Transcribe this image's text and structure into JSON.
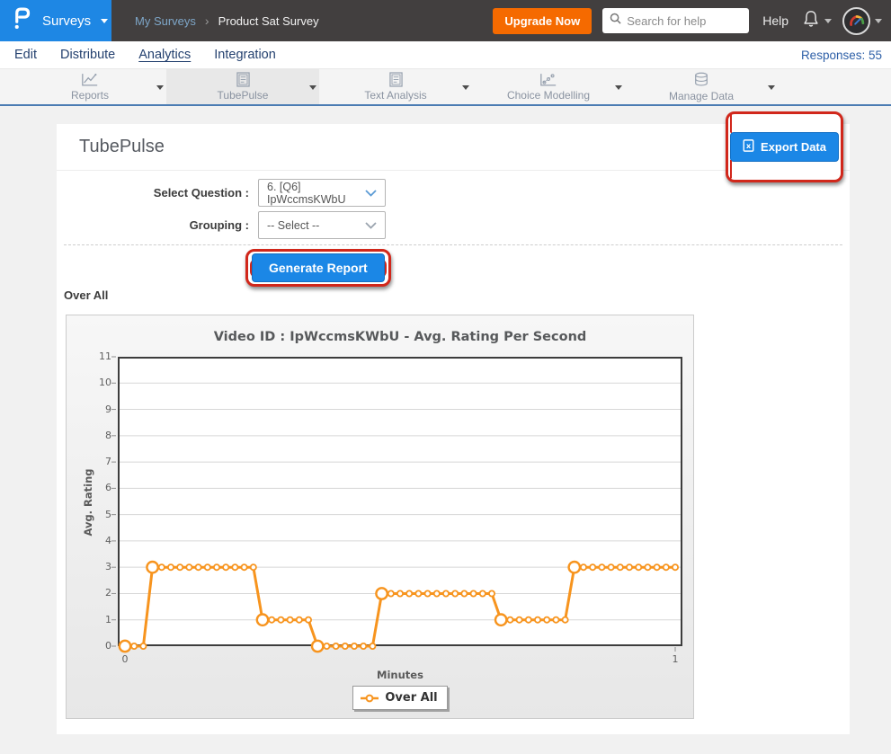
{
  "topbar": {
    "brand_label": "Surveys",
    "breadcrumb": {
      "parent": "My Surveys",
      "separator": "›",
      "current": "Product Sat Survey"
    },
    "upgrade_button": "Upgrade Now",
    "search_placeholder": "Search for help",
    "help_label": "Help"
  },
  "nav": {
    "items": [
      {
        "label": "Edit",
        "active": false
      },
      {
        "label": "Distribute",
        "active": false
      },
      {
        "label": "Analytics",
        "active": true
      },
      {
        "label": "Integration",
        "active": false
      }
    ],
    "responses_label": "Responses: 55"
  },
  "tabs": [
    {
      "label": "Reports",
      "icon": "line-chart-icon",
      "active": false
    },
    {
      "label": "TubePulse",
      "icon": "report-doc-icon",
      "active": true
    },
    {
      "label": "Text Analysis",
      "icon": "report-doc-icon",
      "active": false
    },
    {
      "label": "Choice Modelling",
      "icon": "scatter-chart-icon",
      "active": false
    },
    {
      "label": "Manage Data",
      "icon": "database-icon",
      "active": false
    }
  ],
  "content": {
    "title": "TubePulse",
    "export_button": "Export Data",
    "form": {
      "question_label": "Select Question :",
      "question_value": "6. [Q6] IpWccmsKWbU",
      "grouping_label": "Grouping :",
      "grouping_value": "-- Select --"
    },
    "generate_button": "Generate Report",
    "section_label": "Over All"
  },
  "chart_data": {
    "type": "line",
    "title": "Video ID : IpWccmsKWbU - Avg. Rating Per Second",
    "xlabel": "Minutes",
    "ylabel": "Avg. Rating",
    "ylim": [
      0,
      11
    ],
    "yticks": [
      0,
      1,
      2,
      3,
      4,
      5,
      6,
      7,
      8,
      9,
      10,
      11
    ],
    "xticks": [
      0,
      1
    ],
    "x_unit": "minutes",
    "sample_interval_seconds": 1,
    "grid": "horizontal",
    "legend": {
      "position": "bottom",
      "entries": [
        "Over All"
      ]
    },
    "series": [
      {
        "name": "Over All",
        "color": "#f7941e",
        "marker": "circle",
        "segments": [
          {
            "start_s": 0,
            "end_s": 2,
            "value": 0
          },
          {
            "start_s": 3,
            "end_s": 14,
            "value": 3
          },
          {
            "start_s": 15,
            "end_s": 20,
            "value": 1
          },
          {
            "start_s": 21,
            "end_s": 27,
            "value": 0
          },
          {
            "start_s": 28,
            "end_s": 40,
            "value": 2
          },
          {
            "start_s": 41,
            "end_s": 48,
            "value": 1
          },
          {
            "start_s": 49,
            "end_s": 60,
            "value": 3
          }
        ]
      }
    ]
  },
  "colors": {
    "accent_blue": "#1b87e6",
    "brand_blue": "#1e87e4",
    "upgrade_orange": "#f56a00",
    "series_orange": "#f7941e",
    "annotation_red": "#d1271b",
    "topbar_bg": "#423f3f",
    "tab_border_blue": "#4b7cb3"
  }
}
